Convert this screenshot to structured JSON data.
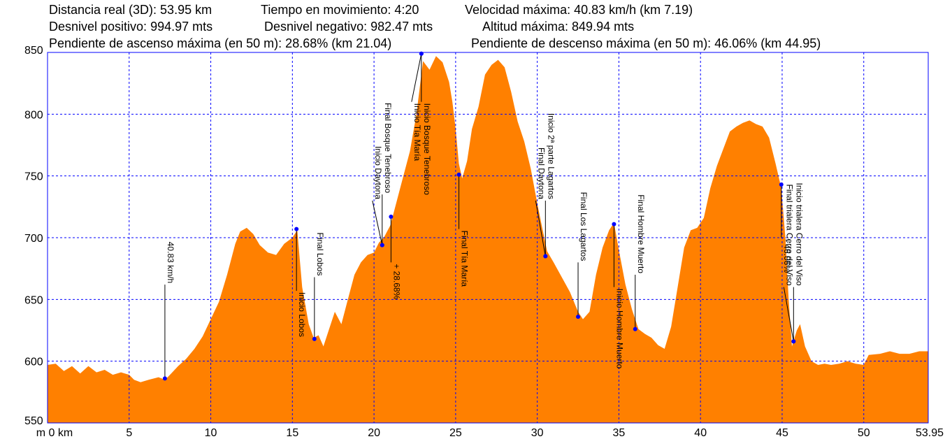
{
  "header": {
    "line1": {
      "distance": "Distancia real (3D): 53.95 km",
      "moving_time": "Tiempo en movimiento: 4:20",
      "max_speed": "Velocidad máxima: 40.83 km/h (km 7.19)"
    },
    "line2": {
      "ascent": "Desnivel positivo: 994.97 mts",
      "descent": "Desnivel negativo: 982.47 mts",
      "max_alt": "Altitud máxima: 849.94 mts"
    },
    "line3": {
      "max_up_slope": "Pendiente de ascenso máxima (en 50 m): 28.68% (km 21.04)",
      "max_down_slope": "Pendiente de descenso máxima (en 50 m): 46.06% (km 44.95)"
    }
  },
  "colors": {
    "fill": "#ff8000",
    "grid": "#0000ff",
    "marker": "#0000ff",
    "frame": "#0000ff"
  },
  "chart_data": {
    "type": "area",
    "title": "",
    "xlabel": "km",
    "ylabel": "m",
    "xlim": [
      0,
      53.95
    ],
    "ylim": [
      550,
      850
    ],
    "grid": true,
    "x_ticks": [
      "0",
      "5",
      "10",
      "15",
      "20",
      "25",
      "30",
      "35",
      "40",
      "45",
      "50",
      "53.95"
    ],
    "y_ticks": [
      "550",
      "600",
      "650",
      "700",
      "750",
      "800",
      "850"
    ],
    "x_unit_label": "m 0 km",
    "profile": [
      [
        0,
        597
      ],
      [
        0.5,
        598
      ],
      [
        1.0,
        592
      ],
      [
        1.5,
        596
      ],
      [
        2.0,
        590
      ],
      [
        2.5,
        596
      ],
      [
        3.0,
        591
      ],
      [
        3.5,
        593
      ],
      [
        4.0,
        589
      ],
      [
        4.5,
        591
      ],
      [
        5.0,
        589
      ],
      [
        5.3,
        585
      ],
      [
        5.7,
        583
      ],
      [
        6.2,
        585
      ],
      [
        6.8,
        587
      ],
      [
        7.2,
        585
      ],
      [
        7.5,
        589
      ],
      [
        8.0,
        596
      ],
      [
        8.5,
        602
      ],
      [
        9.0,
        610
      ],
      [
        9.5,
        620
      ],
      [
        10.0,
        634
      ],
      [
        10.5,
        648
      ],
      [
        11.0,
        670
      ],
      [
        11.5,
        695
      ],
      [
        11.8,
        705
      ],
      [
        12.2,
        708
      ],
      [
        12.6,
        703
      ],
      [
        13.0,
        694
      ],
      [
        13.5,
        688
      ],
      [
        14.0,
        686
      ],
      [
        14.5,
        695
      ],
      [
        15.0,
        700
      ],
      [
        15.3,
        706
      ],
      [
        15.6,
        660
      ],
      [
        16.0,
        630
      ],
      [
        16.3,
        619
      ],
      [
        16.6,
        621
      ],
      [
        16.9,
        612
      ],
      [
        17.2,
        624
      ],
      [
        17.6,
        640
      ],
      [
        18.0,
        630
      ],
      [
        18.4,
        650
      ],
      [
        18.8,
        670
      ],
      [
        19.2,
        680
      ],
      [
        19.6,
        686
      ],
      [
        20.0,
        688
      ],
      [
        20.3,
        696
      ],
      [
        20.6,
        700
      ],
      [
        21.0,
        710
      ],
      [
        21.4,
        730
      ],
      [
        21.8,
        750
      ],
      [
        22.2,
        770
      ],
      [
        22.6,
        800
      ],
      [
        23.0,
        843
      ],
      [
        23.4,
        836
      ],
      [
        23.8,
        847
      ],
      [
        24.2,
        842
      ],
      [
        24.6,
        826
      ],
      [
        24.8,
        810
      ],
      [
        25.0,
        788
      ],
      [
        25.2,
        760
      ],
      [
        25.4,
        748
      ],
      [
        25.7,
        762
      ],
      [
        26.0,
        788
      ],
      [
        26.4,
        806
      ],
      [
        26.8,
        832
      ],
      [
        27.2,
        840
      ],
      [
        27.6,
        844
      ],
      [
        28.0,
        838
      ],
      [
        28.4,
        818
      ],
      [
        28.8,
        794
      ],
      [
        29.2,
        778
      ],
      [
        29.6,
        756
      ],
      [
        30.0,
        728
      ],
      [
        30.3,
        708
      ],
      [
        30.6,
        689
      ],
      [
        31.0,
        680
      ],
      [
        31.5,
        668
      ],
      [
        32.0,
        656
      ],
      [
        32.5,
        640
      ],
      [
        32.8,
        634
      ],
      [
        33.2,
        640
      ],
      [
        33.6,
        670
      ],
      [
        34.0,
        692
      ],
      [
        34.4,
        706
      ],
      [
        34.7,
        712
      ],
      [
        35.0,
        690
      ],
      [
        35.4,
        662
      ],
      [
        35.8,
        642
      ],
      [
        36.2,
        626
      ],
      [
        36.6,
        622
      ],
      [
        37.0,
        619
      ],
      [
        37.4,
        613
      ],
      [
        37.8,
        610
      ],
      [
        38.2,
        628
      ],
      [
        38.6,
        660
      ],
      [
        39.0,
        692
      ],
      [
        39.4,
        706
      ],
      [
        39.8,
        708
      ],
      [
        40.2,
        716
      ],
      [
        40.6,
        740
      ],
      [
        41.0,
        758
      ],
      [
        41.4,
        772
      ],
      [
        41.8,
        786
      ],
      [
        42.2,
        790
      ],
      [
        42.6,
        793
      ],
      [
        43.0,
        795
      ],
      [
        43.4,
        792
      ],
      [
        43.8,
        790
      ],
      [
        44.2,
        781
      ],
      [
        44.6,
        760
      ],
      [
        44.95,
        740
      ],
      [
        45.2,
        700
      ],
      [
        45.4,
        650
      ],
      [
        45.6,
        612
      ],
      [
        45.9,
        625
      ],
      [
        46.1,
        630
      ],
      [
        46.4,
        612
      ],
      [
        46.8,
        600
      ],
      [
        47.2,
        597
      ],
      [
        47.6,
        598
      ],
      [
        48.0,
        597
      ],
      [
        48.5,
        598
      ],
      [
        49.0,
        600
      ],
      [
        49.5,
        598
      ],
      [
        50.0,
        597
      ],
      [
        50.3,
        605
      ],
      [
        51.0,
        606
      ],
      [
        51.6,
        608
      ],
      [
        52.2,
        606
      ],
      [
        52.8,
        606
      ],
      [
        53.4,
        608
      ],
      [
        53.95,
        608
      ]
    ],
    "waypoints": [
      {
        "label": "40.83 km/h",
        "x": 7.19,
        "y": 586,
        "line_to": 662
      },
      {
        "label": "Inicio Lobos",
        "x": 15.25,
        "y": 707,
        "line_to": 657
      },
      {
        "label": "Final Lobos",
        "x": 16.35,
        "y": 618,
        "line_to": 668
      },
      {
        "label": "Final Bosque Tenebroso",
        "x": 20.5,
        "y": 694,
        "line_to": 735
      },
      {
        "label": "Inicio Daytona",
        "x": 20.5,
        "y": 694,
        "line_to": 730
      },
      {
        "label": "+ 28.68%",
        "x": 21.04,
        "y": 717,
        "line_to": 680
      },
      {
        "label": "Inicio Bosque Tenebroso",
        "x": 22.9,
        "y": 849,
        "line_to": 810
      },
      {
        "label": "Inicio Tía María",
        "x": 22.9,
        "y": 849,
        "line_to": 810
      },
      {
        "label": "Final Tía María",
        "x": 25.2,
        "y": 751,
        "line_to": 707
      },
      {
        "label": "Inicio 2ª parte Lagartos",
        "x": 30.5,
        "y": 685,
        "line_to": 730
      },
      {
        "label": "Final Daytona",
        "x": 30.5,
        "y": 685,
        "line_to": 730
      },
      {
        "label": "Final Los Lagartos",
        "x": 32.5,
        "y": 636,
        "line_to": 680
      },
      {
        "label": "Inicio Hombre Muerto",
        "x": 34.7,
        "y": 711,
        "line_to": 660
      },
      {
        "label": "Final Hombre Muerto",
        "x": 36.0,
        "y": 626,
        "line_to": 670
      },
      {
        "label": "- 46.06%",
        "x": 44.95,
        "y": 743,
        "line_to": 700
      },
      {
        "label": "Inicio trialera Cerro del Viso",
        "x": 45.7,
        "y": 616,
        "line_to": 660
      },
      {
        "label": "Final trialera Cerro del Viso",
        "x": 45.7,
        "y": 616,
        "line_to": 660
      }
    ]
  }
}
